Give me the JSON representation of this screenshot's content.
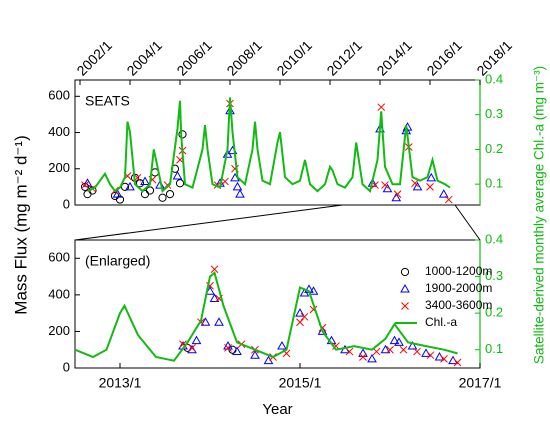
{
  "chart_data": [
    {
      "type": "scatter",
      "annotation": "SEATS",
      "ylabel": "Mass Flux (mg m⁻² d⁻¹)",
      "y2label": "Satellite-derived monthly average Chl.-a (mg m⁻³)",
      "xlim": [
        2001.8,
        2018.0
      ],
      "xticks": [
        {
          "value": 2002,
          "label": "2002/1"
        },
        {
          "value": 2004,
          "label": "2004/1"
        },
        {
          "value": 2006,
          "label": "2006/1"
        },
        {
          "value": 2008,
          "label": "2008/1"
        },
        {
          "value": 2010,
          "label": "2010/1"
        },
        {
          "value": 2012,
          "label": "2012/1"
        },
        {
          "value": 2014,
          "label": "2014/1"
        },
        {
          "value": 2016,
          "label": "2016/1"
        },
        {
          "value": 2018,
          "label": "2018/1"
        }
      ],
      "ylim": [
        0,
        690
      ],
      "yticks": [
        0,
        200,
        400,
        600
      ],
      "y2lim": [
        0.04,
        0.4
      ],
      "y2ticks": [
        0.1,
        0.2,
        0.3,
        0.4
      ],
      "series": [
        {
          "name": "1000-1200m",
          "color": "#000000",
          "marker": "o",
          "x": [
            2002.2,
            2002.3,
            2002.5,
            2003.4,
            2003.6,
            2003.8,
            2004.2,
            2004.4,
            2004.6,
            2004.8,
            2005.0,
            2005.3,
            2005.6,
            2005.8,
            2006.0,
            2006.1
          ],
          "values": [
            100,
            60,
            80,
            50,
            30,
            100,
            150,
            120,
            60,
            80,
            180,
            40,
            60,
            200,
            120,
            390
          ]
        },
        {
          "name": "1900-2000m",
          "color": "#0000ff",
          "marker": "^",
          "x": [
            2002.3,
            2003.5,
            2004.0,
            2004.6,
            2005.2,
            2005.9,
            2007.6,
            2007.9,
            2008.0,
            2008.1,
            2008.2,
            2008.3,
            2008.4,
            2013.7,
            2014.0,
            2014.3,
            2014.65,
            2015.05,
            2015.1,
            2015.5,
            2016.05,
            2016.55
          ],
          "values": [
            120,
            60,
            100,
            130,
            110,
            160,
            120,
            280,
            520,
            300,
            150,
            100,
            60,
            120,
            420,
            90,
            40,
            410,
            430,
            100,
            150,
            60
          ]
        },
        {
          "name": "3400-3600m",
          "color": "#ff0000",
          "marker": "x",
          "x": [
            2002.2,
            2002.5,
            2003.4,
            2003.9,
            2004.3,
            2004.9,
            2005.5,
            2006.0,
            2006.1,
            2007.5,
            2007.8,
            2008.0,
            2008.2,
            2013.8,
            2014.05,
            2014.2,
            2014.7,
            2015.15,
            2015.4,
            2016.0,
            2016.75
          ],
          "values": [
            110,
            90,
            80,
            160,
            150,
            140,
            110,
            250,
            300,
            110,
            130,
            560,
            200,
            110,
            540,
            110,
            60,
            320,
            120,
            100,
            30
          ]
        },
        {
          "name": "Chl.-a",
          "color": "#11bb11",
          "marker": "line",
          "axis": "y2",
          "x": [
            2002.3,
            2002.6,
            2002.9,
            2003.0,
            2003.2,
            2003.4,
            2003.6,
            2003.8,
            2003.9,
            2004.0,
            2004.2,
            2004.5,
            2004.8,
            2004.95,
            2005.1,
            2005.3,
            2005.6,
            2005.9,
            2006.0,
            2006.05,
            2006.2,
            2006.5,
            2006.9,
            2007.0,
            2007.1,
            2007.3,
            2007.6,
            2007.9,
            2008.0,
            2008.1,
            2008.3,
            2008.6,
            2008.9,
            2009.0,
            2009.1,
            2009.3,
            2009.6,
            2009.9,
            2010.0,
            2010.2,
            2010.5,
            2010.8,
            2011.0,
            2011.2,
            2011.5,
            2011.8,
            2012.0,
            2012.1,
            2012.3,
            2012.6,
            2012.9,
            2013.05,
            2013.3,
            2013.6,
            2013.9,
            2014.05,
            2014.2,
            2014.5,
            2014.8,
            2015.05,
            2015.3,
            2015.6,
            2015.9,
            2016.1,
            2016.3,
            2016.6,
            2016.8
          ],
          "values": [
            0.08,
            0.09,
            0.12,
            0.13,
            0.1,
            0.08,
            0.09,
            0.12,
            0.28,
            0.25,
            0.1,
            0.08,
            0.1,
            0.2,
            0.15,
            0.08,
            0.1,
            0.26,
            0.34,
            0.24,
            0.1,
            0.09,
            0.2,
            0.27,
            0.2,
            0.1,
            0.09,
            0.2,
            0.35,
            0.25,
            0.12,
            0.1,
            0.2,
            0.28,
            0.2,
            0.11,
            0.1,
            0.22,
            0.25,
            0.12,
            0.1,
            0.11,
            0.17,
            0.1,
            0.08,
            0.1,
            0.15,
            0.14,
            0.1,
            0.09,
            0.12,
            0.22,
            0.1,
            0.08,
            0.17,
            0.31,
            0.15,
            0.1,
            0.1,
            0.27,
            0.12,
            0.11,
            0.12,
            0.17,
            0.11,
            0.1,
            0.09
          ]
        }
      ]
    },
    {
      "type": "scatter",
      "annotation": "(Enlarged)",
      "xlabel": "Year",
      "legend": "upper right",
      "xlim": [
        2012.5,
        2017.0
      ],
      "xticks": [
        {
          "value": 2013,
          "label": "2013/1"
        },
        {
          "value": 2015,
          "label": "2015/1"
        },
        {
          "value": 2017,
          "label": "2017/1"
        }
      ],
      "ylim": [
        0,
        700
      ],
      "yticks": [
        0,
        200,
        400,
        600
      ],
      "y2lim": [
        0.05,
        0.4
      ],
      "y2ticks": [
        0.1,
        0.2,
        0.3,
        0.4
      ],
      "series": [
        {
          "name": "1000-1200m",
          "color": "#000000",
          "marker": "o",
          "x": [
            2013.75,
            2014.25
          ],
          "values": [
            110,
            100
          ]
        },
        {
          "name": "1900-2000m",
          "color": "#0000ff",
          "marker": "^",
          "x": [
            2013.7,
            2013.8,
            2013.85,
            2013.95,
            2014.0,
            2014.05,
            2014.1,
            2014.2,
            2014.3,
            2014.5,
            2014.65,
            2014.8,
            2015.0,
            2015.05,
            2015.1,
            2015.15,
            2015.25,
            2015.35,
            2015.5,
            2015.7,
            2015.8,
            2015.95,
            2016.05,
            2016.1,
            2016.25,
            2016.4,
            2016.55,
            2016.7
          ],
          "values": [
            120,
            100,
            150,
            250,
            420,
            380,
            250,
            120,
            90,
            70,
            40,
            120,
            300,
            410,
            430,
            420,
            200,
            150,
            100,
            80,
            50,
            100,
            150,
            140,
            120,
            80,
            60,
            40
          ]
        },
        {
          "name": "3400-3600m",
          "color": "#ff0000",
          "marker": "x",
          "x": [
            2013.7,
            2013.8,
            2013.9,
            2014.0,
            2014.05,
            2014.1,
            2014.2,
            2014.35,
            2014.5,
            2014.7,
            2014.85,
            2015.0,
            2015.05,
            2015.15,
            2015.25,
            2015.4,
            2015.55,
            2015.7,
            2015.85,
            2016.0,
            2016.15,
            2016.3,
            2016.45,
            2016.6,
            2016.75
          ],
          "values": [
            130,
            110,
            250,
            450,
            540,
            380,
            110,
            130,
            100,
            60,
            80,
            250,
            280,
            320,
            220,
            120,
            90,
            60,
            90,
            100,
            100,
            90,
            70,
            50,
            30
          ]
        },
        {
          "name": "Chl.-a",
          "color": "#11bb11",
          "marker": "line",
          "axis": "y2",
          "x": [
            2012.5,
            2012.7,
            2012.85,
            2013.0,
            2013.05,
            2013.2,
            2013.4,
            2013.6,
            2013.75,
            2013.9,
            2014.0,
            2014.05,
            2014.15,
            2014.3,
            2014.5,
            2014.7,
            2014.85,
            2015.0,
            2015.1,
            2015.25,
            2015.4,
            2015.6,
            2015.8,
            2015.95,
            2016.05,
            2016.2,
            2016.4,
            2016.6,
            2016.75
          ],
          "values": [
            0.1,
            0.08,
            0.1,
            0.2,
            0.22,
            0.14,
            0.08,
            0.07,
            0.12,
            0.18,
            0.3,
            0.31,
            0.22,
            0.12,
            0.1,
            0.08,
            0.1,
            0.27,
            0.26,
            0.15,
            0.1,
            0.11,
            0.1,
            0.13,
            0.17,
            0.12,
            0.11,
            0.1,
            0.09
          ]
        }
      ]
    }
  ]
}
